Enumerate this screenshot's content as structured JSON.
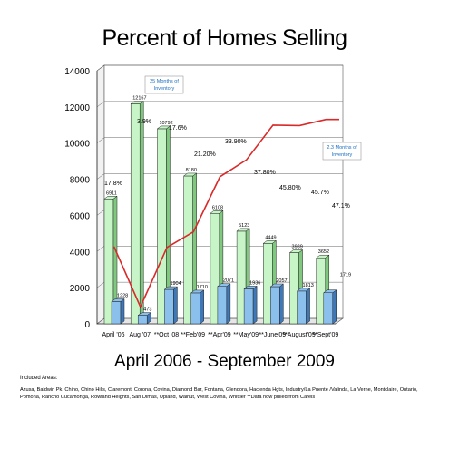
{
  "title": "Percent of Homes Selling",
  "subtitle": "April 2006 - September 2009",
  "areas_heading": "Included Areas:",
  "areas_text": "Azusa, Baldwin Pk, Chino, Chino Hills, Claremont, Corona, Covina, Diamond Bar, Fontana, Glendora, Hacienda Hgts, Industry/La Puente /Valinda, La Verne, Montclaire, Ontario, Pomona, Rancho Cucamonga, Rowland Heights, San Dimas, Upland, Walnut, West Covina, Whittier **Data now pulled from Careis",
  "callouts": [
    {
      "line1": "25 Months of",
      "line2": "Inventory"
    },
    {
      "line1": "2.3 Months of",
      "line2": "Inventory"
    }
  ],
  "colors": {
    "inventory_bar": "#c8f5c8",
    "inventory_side": "#7fc97f",
    "sold_bar": "#8cc0ec",
    "sold_side": "#3f78b8",
    "percent_line": "#d92a2a",
    "callout_text": "#1a6fc0"
  },
  "chart_data": {
    "type": "bar",
    "title": "Percent of Homes Selling",
    "categories": [
      "April '06",
      "Aug '07",
      "**Oct '08",
      "**Feb'09",
      "**Apr'09",
      "**May'09",
      "**June'09",
      "**August'09",
      "**Sept'09"
    ],
    "ylim": [
      0,
      14000
    ],
    "yticks": [
      0,
      2000,
      4000,
      6000,
      8000,
      10000,
      12000,
      14000
    ],
    "grid": true,
    "series": [
      {
        "values": [
          6911,
          12167,
          10792,
          8180,
          6108,
          5123,
          4449,
          3939,
          3652
        ],
        "labels": [
          "6911",
          "12167",
          "10792",
          "8180",
          "6108",
          "5123",
          "4449",
          "3939",
          "3652"
        ]
      },
      {
        "values": [
          1228,
          473,
          1904,
          1710,
          2071,
          1936,
          2057,
          1813,
          1719
        ],
        "labels": [
          "1228",
          "473",
          "1904",
          "1710",
          "2071",
          "1936",
          "2057",
          "1813",
          "1719"
        ]
      },
      {
        "type": "line",
        "values": [
          17.8,
          3.9,
          17.6,
          21.2,
          33.9,
          37.8,
          45.8,
          45.7,
          47.1
        ],
        "labels": [
          "17.8%",
          "3.9%",
          "17.6%",
          "21.20%",
          "33.90%",
          "37.80%",
          "45.80%",
          "45.7%",
          "47.1%"
        ]
      }
    ]
  }
}
